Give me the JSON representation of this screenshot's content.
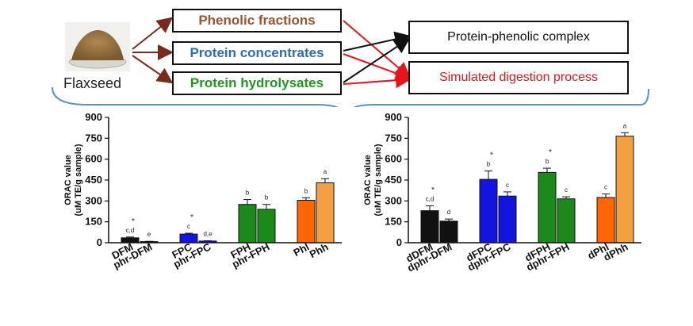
{
  "flaxseed": {
    "label": "Flaxseed"
  },
  "fractions": [
    {
      "label": "Phenolic fractions",
      "color": "#a0522d"
    },
    {
      "label": "Protein concentrates",
      "color": "#2e6db4"
    },
    {
      "label": "Protein hydrolysates",
      "color": "#1f9a1f"
    }
  ],
  "outcomes": [
    {
      "label": "Protein-phenolic complex",
      "color": "#111111"
    },
    {
      "label": "Simulated digestion process",
      "color": "#e8141b"
    }
  ],
  "colors": {
    "arrow_source": "#7b2b1e",
    "arrow_red": "#e8141b",
    "arrow_black": "#111111",
    "brace": "#5b8fc7"
  },
  "chart_data": [
    {
      "type": "bar",
      "ylabel_line1": "ORAC value",
      "ylabel_line2": "(uM TE/g sample)",
      "ylim": [
        0,
        900
      ],
      "yticks": [
        "0",
        "150",
        "300",
        "450",
        "600",
        "750",
        "900"
      ],
      "bars": [
        {
          "label": "DFM",
          "value": 35,
          "err": 6,
          "sig": "c,d",
          "star": true,
          "color": "#111111"
        },
        {
          "label": "phr-DFM",
          "value": 8,
          "err": 2,
          "sig": "e",
          "star": false,
          "color": "#111111"
        },
        {
          "label": "FPC",
          "value": 62,
          "err": 6,
          "sig": "c",
          "star": true,
          "color": "#1414e0"
        },
        {
          "label": "phr-FPC",
          "value": 12,
          "err": 2,
          "sig": "d,e",
          "star": false,
          "color": "#1414e0"
        },
        {
          "label": "FPH",
          "value": 275,
          "err": 35,
          "sig": "b",
          "star": false,
          "color": "#1b8a1b"
        },
        {
          "label": "phr-FPH",
          "value": 240,
          "err": 35,
          "sig": "b",
          "star": false,
          "color": "#1b8a1b"
        },
        {
          "label": "Phl",
          "value": 305,
          "err": 18,
          "sig": "b",
          "star": false,
          "color": "#ff6600"
        },
        {
          "label": "Phh",
          "value": 430,
          "err": 30,
          "sig": "a",
          "star": false,
          "color": "#f5a040"
        }
      ]
    },
    {
      "type": "bar",
      "ylabel_line1": "ORAC value",
      "ylabel_line2": "(uM TE/g sample)",
      "ylim": [
        0,
        900
      ],
      "yticks": [
        "0",
        "150",
        "300",
        "450",
        "600",
        "750",
        "900"
      ],
      "bars": [
        {
          "label": "dDFM",
          "value": 230,
          "err": 35,
          "sig": "c,d",
          "star": true,
          "color": "#111111"
        },
        {
          "label": "dphr-DFM",
          "value": 155,
          "err": 15,
          "sig": "d",
          "star": false,
          "color": "#111111"
        },
        {
          "label": "dFPC",
          "value": 455,
          "err": 60,
          "sig": "b",
          "star": true,
          "color": "#1414e0"
        },
        {
          "label": "dphr-FPC",
          "value": 335,
          "err": 30,
          "sig": "c",
          "star": false,
          "color": "#1414e0"
        },
        {
          "label": "dFPH",
          "value": 505,
          "err": 30,
          "sig": "b",
          "star": true,
          "color": "#1b8a1b"
        },
        {
          "label": "dphr-FPH",
          "value": 315,
          "err": 15,
          "sig": "c",
          "star": false,
          "color": "#1b8a1b"
        },
        {
          "label": "dPhl",
          "value": 325,
          "err": 25,
          "sig": "c",
          "star": false,
          "color": "#ff6600"
        },
        {
          "label": "dPhh",
          "value": 765,
          "err": 25,
          "sig": "a",
          "star": false,
          "color": "#f5a040"
        }
      ]
    }
  ]
}
